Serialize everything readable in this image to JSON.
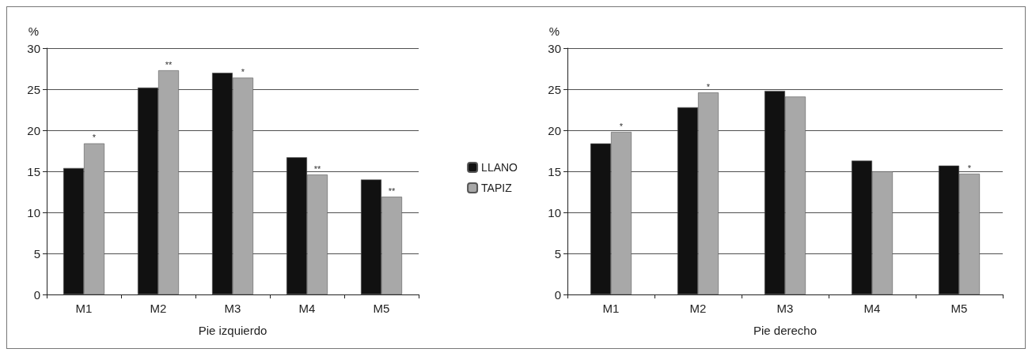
{
  "chart_data": [
    {
      "type": "bar",
      "xlabel": "Pie izquierdo",
      "ylabel": "%",
      "categories": [
        "M1",
        "M2",
        "M3",
        "M4",
        "M5"
      ],
      "ylim": [
        0,
        30
      ],
      "yticks": [
        0,
        5,
        10,
        15,
        20,
        25,
        30
      ],
      "grid": "y",
      "legend": "right",
      "series": [
        {
          "name": "LLANO",
          "color": "#111111",
          "values": [
            15.4,
            25.2,
            27.0,
            16.7,
            14.0
          ]
        },
        {
          "name": "TAPIZ",
          "color": "#a8a8a8",
          "values": [
            18.4,
            27.3,
            26.4,
            14.6,
            11.9
          ],
          "value_labels": [
            "*",
            "**",
            "*",
            "**",
            "**"
          ]
        }
      ]
    },
    {
      "type": "bar",
      "xlabel": "Pie derecho",
      "ylabel": "%",
      "categories": [
        "M1",
        "M2",
        "M3",
        "M4",
        "M5"
      ],
      "ylim": [
        0,
        30
      ],
      "yticks": [
        0,
        5,
        10,
        15,
        20,
        25,
        30
      ],
      "grid": "y",
      "series": [
        {
          "color": "#111111",
          "values": [
            18.4,
            22.8,
            24.8,
            16.3,
            15.7
          ]
        },
        {
          "color": "#a8a8a8",
          "values": [
            19.8,
            24.6,
            24.1,
            15.0,
            14.7
          ],
          "value_labels": [
            "*",
            "*",
            null,
            null,
            "*"
          ]
        }
      ]
    }
  ]
}
